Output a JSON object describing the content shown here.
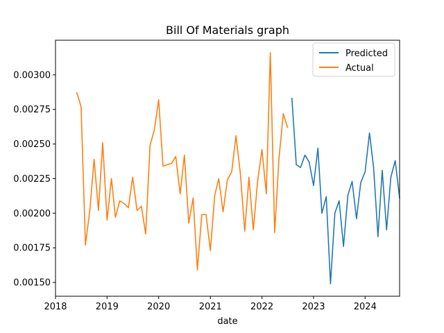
{
  "chart_data": {
    "type": "line",
    "title": "Bill Of Materials graph",
    "xlabel": "date",
    "ylabel": "",
    "x_axis_type": "date",
    "xlim": [
      "2018-01-01",
      "2024-09-01"
    ],
    "ylim": [
      0.0014,
      0.00325
    ],
    "x_ticks": [
      "2018",
      "2019",
      "2020",
      "2021",
      "2022",
      "2023",
      "2024"
    ],
    "y_ticks": [
      "0.00150",
      "0.00175",
      "0.00200",
      "0.00225",
      "0.00250",
      "0.00275",
      "0.00300"
    ],
    "grid": false,
    "legend_position": "top-right",
    "series": [
      {
        "name": "Predicted",
        "color": "#1f77b4",
        "points": [
          [
            "2022-08-01",
            0.00283
          ],
          [
            "2022-09-01",
            0.00235
          ],
          [
            "2022-10-01",
            0.00233
          ],
          [
            "2022-11-01",
            0.00242
          ],
          [
            "2022-12-01",
            0.00237
          ],
          [
            "2023-01-01",
            0.0022
          ],
          [
            "2023-02-01",
            0.00247
          ],
          [
            "2023-03-01",
            0.002
          ],
          [
            "2023-04-01",
            0.00212
          ],
          [
            "2023-05-01",
            0.00149
          ],
          [
            "2023-06-01",
            0.002
          ],
          [
            "2023-07-01",
            0.00209
          ],
          [
            "2023-08-01",
            0.00176
          ],
          [
            "2023-09-01",
            0.00213
          ],
          [
            "2023-10-01",
            0.00223
          ],
          [
            "2023-11-01",
            0.00196
          ],
          [
            "2023-12-01",
            0.00222
          ],
          [
            "2024-01-01",
            0.0023
          ],
          [
            "2024-02-01",
            0.00258
          ],
          [
            "2024-03-01",
            0.00233
          ],
          [
            "2024-04-01",
            0.00183
          ],
          [
            "2024-05-01",
            0.00231
          ],
          [
            "2024-06-01",
            0.00188
          ],
          [
            "2024-07-01",
            0.00226
          ],
          [
            "2024-08-01",
            0.00238
          ],
          [
            "2024-09-01",
            0.00211
          ]
        ]
      },
      {
        "name": "Actual",
        "color": "#ff7f0e",
        "points": [
          [
            "2018-06-01",
            0.00287
          ],
          [
            "2018-07-01",
            0.00277
          ],
          [
            "2018-08-01",
            0.00177
          ],
          [
            "2018-09-01",
            0.00202
          ],
          [
            "2018-10-01",
            0.00239
          ],
          [
            "2018-11-01",
            0.00202
          ],
          [
            "2018-12-01",
            0.00251
          ],
          [
            "2019-01-01",
            0.00195
          ],
          [
            "2019-02-01",
            0.00225
          ],
          [
            "2019-03-01",
            0.00197
          ],
          [
            "2019-04-01",
            0.00209
          ],
          [
            "2019-05-01",
            0.00207
          ],
          [
            "2019-06-01",
            0.00204
          ],
          [
            "2019-07-01",
            0.00226
          ],
          [
            "2019-08-01",
            0.00202
          ],
          [
            "2019-09-01",
            0.00205
          ],
          [
            "2019-10-01",
            0.00185
          ],
          [
            "2019-11-01",
            0.00249
          ],
          [
            "2019-12-01",
            0.0026
          ],
          [
            "2020-01-01",
            0.00282
          ],
          [
            "2020-02-01",
            0.00234
          ],
          [
            "2020-03-01",
            0.00235
          ],
          [
            "2020-04-01",
            0.00236
          ],
          [
            "2020-05-01",
            0.00241
          ],
          [
            "2020-06-01",
            0.00214
          ],
          [
            "2020-07-01",
            0.00242
          ],
          [
            "2020-08-01",
            0.00193
          ],
          [
            "2020-09-01",
            0.00211
          ],
          [
            "2020-10-01",
            0.00159
          ],
          [
            "2020-11-01",
            0.00199
          ],
          [
            "2020-12-01",
            0.00199
          ],
          [
            "2021-01-01",
            0.00173
          ],
          [
            "2021-02-01",
            0.00213
          ],
          [
            "2021-03-01",
            0.00225
          ],
          [
            "2021-04-01",
            0.00201
          ],
          [
            "2021-05-01",
            0.00224
          ],
          [
            "2021-06-01",
            0.0023
          ],
          [
            "2021-07-01",
            0.00256
          ],
          [
            "2021-08-01",
            0.00229
          ],
          [
            "2021-09-01",
            0.00187
          ],
          [
            "2021-10-01",
            0.00226
          ],
          [
            "2021-11-01",
            0.00188
          ],
          [
            "2021-12-01",
            0.00223
          ],
          [
            "2022-01-01",
            0.00246
          ],
          [
            "2022-02-01",
            0.00214
          ],
          [
            "2022-03-01",
            0.00316
          ],
          [
            "2022-04-01",
            0.00186
          ],
          [
            "2022-05-01",
            0.00239
          ],
          [
            "2022-06-01",
            0.00272
          ],
          [
            "2022-07-01",
            0.00262
          ]
        ]
      }
    ]
  }
}
